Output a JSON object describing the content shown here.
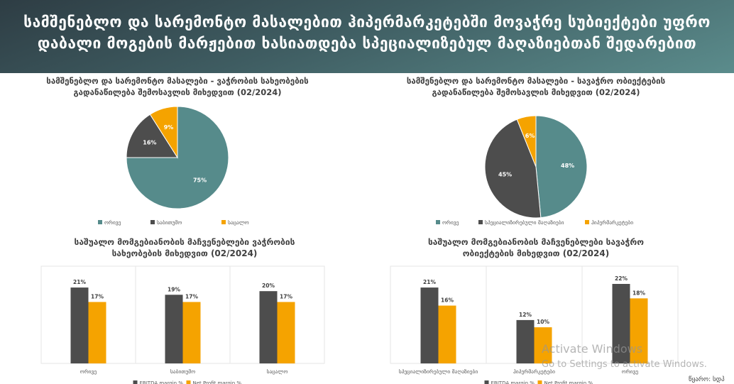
{
  "header": {
    "title_line1": "სამშენებლო და სარემონტო მასალებით ჰიპერმარკეტებში მოვაჭრე სუბიექტები უფრო",
    "title_line2": "დაბალი მოგების მარჟებით ხასიათდება სპეციალიზებულ მაღაზიებთან შედარებით"
  },
  "colors": {
    "teal": "#568b8b",
    "gray": "#4d4d4d",
    "orange": "#f5a300"
  },
  "chart_data": [
    {
      "type": "pie",
      "title": "სამშენებლო და სარემონტო მასალები - ვაჭრობის სახეობების",
      "title2": "გადანაწილება შემოსავლის მიხედვით (02/2024)",
      "categories": [
        "ორივე",
        "საბითუმო",
        "საცალო"
      ],
      "values": [
        75,
        16,
        9
      ],
      "labels": [
        "75%",
        "16%",
        "9%"
      ]
    },
    {
      "type": "pie",
      "title": "სამშენებლო და სარემონტო მასალები - სავაჭრო ობიექტების",
      "title2": "გადანაწილება შემოსავლის მიხედვით (02/2024)",
      "categories": [
        "ორივე",
        "სპეციალიზირებული მაღაზიები",
        "ჰიპერმარკეტები"
      ],
      "values": [
        48,
        45,
        6
      ],
      "labels": [
        "48%",
        "45%",
        "6%"
      ]
    },
    {
      "type": "bar",
      "title": "საშუალო მომგებიანობის მაჩვენებლები ვაჭრობის",
      "title2": "სახეობების მიხედვით (02/2024)",
      "categories": [
        "ორივე",
        "საბითუმო",
        "საცალო"
      ],
      "series": [
        {
          "name": "EBITDA margin %",
          "values": [
            21,
            19,
            20
          ]
        },
        {
          "name": "Net Profit margin %",
          "values": [
            17,
            17,
            17
          ]
        }
      ]
    },
    {
      "type": "bar",
      "title": "საშუალო მომგებიანობის მაჩვენებლები სავაჭრო",
      "title2": "ობიექტების მიხედვით (02/2024)",
      "categories": [
        "სპეციალიზირებული მაღაზიები",
        "ჰიპერმარკეტები",
        "ორივე"
      ],
      "series": [
        {
          "name": "EBITDA margin %",
          "values": [
            21,
            12,
            22
          ]
        },
        {
          "name": "Net Profit margin %",
          "values": [
            16,
            10,
            18
          ]
        }
      ]
    }
  ],
  "source": "წყარო: სდპ",
  "watermark": {
    "line1": "Activate Windows",
    "line2": "Go to Settings to activate Windows."
  }
}
